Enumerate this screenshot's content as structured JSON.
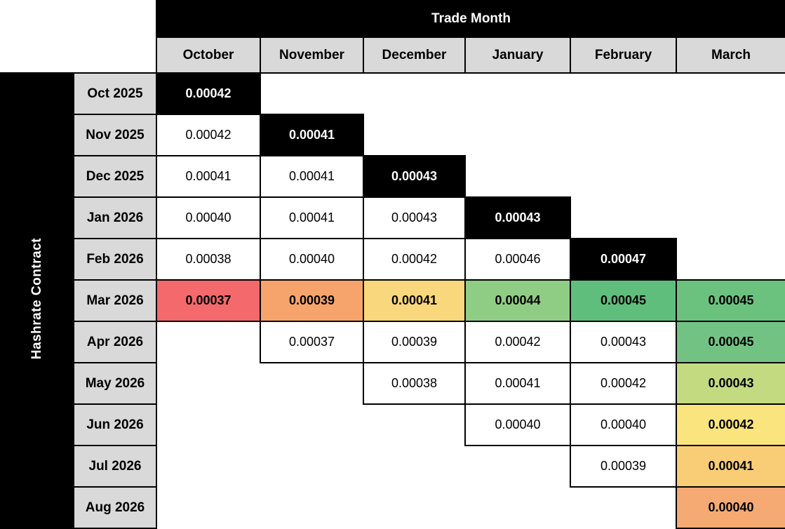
{
  "header": {
    "title": "Trade Month"
  },
  "left_axis": {
    "label": "Hashrate Contract"
  },
  "columns": [
    "October",
    "November",
    "December",
    "January",
    "February",
    "March"
  ],
  "colors": {
    "header_bg": "#000000",
    "header_text": "#ffffff",
    "column_header_bg": "#d9d9d9",
    "row_label_bg": "#d9d9d9",
    "diagonal_bg": "#000000",
    "diagonal_text": "#ffffff",
    "grid_line": "#000000",
    "scale_low": "#F4696B",
    "scale_mid": "#F9D77C",
    "scale_high": "#60BE7C"
  },
  "rows": [
    {
      "label": "Oct 2025",
      "cells": [
        {
          "value": "0.00042",
          "type": "diagonal"
        },
        null,
        null,
        null,
        null,
        null
      ]
    },
    {
      "label": "Nov 2025",
      "cells": [
        {
          "value": "0.00042"
        },
        {
          "value": "0.00041",
          "type": "diagonal"
        },
        null,
        null,
        null,
        null
      ]
    },
    {
      "label": "Dec 2025",
      "cells": [
        {
          "value": "0.00041"
        },
        {
          "value": "0.00041"
        },
        {
          "value": "0.00043",
          "type": "diagonal"
        },
        null,
        null,
        null
      ]
    },
    {
      "label": "Jan 2026",
      "cells": [
        {
          "value": "0.00040"
        },
        {
          "value": "0.00041"
        },
        {
          "value": "0.00043"
        },
        {
          "value": "0.00043",
          "type": "diagonal"
        },
        null,
        null
      ]
    },
    {
      "label": "Feb 2026",
      "cells": [
        {
          "value": "0.00038"
        },
        {
          "value": "0.00040"
        },
        {
          "value": "0.00042"
        },
        {
          "value": "0.00046"
        },
        {
          "value": "0.00047",
          "type": "diagonal"
        },
        null
      ]
    },
    {
      "label": "Mar 2026",
      "cells": [
        {
          "value": "0.00037",
          "bg": "#F4696B"
        },
        {
          "value": "0.00039",
          "bg": "#F7A46C"
        },
        {
          "value": "0.00041",
          "bg": "#F9D77C"
        },
        {
          "value": "0.00044",
          "bg": "#90CD84"
        },
        {
          "value": "0.00045",
          "bg": "#60BE7C"
        },
        {
          "value": "0.00045",
          "bg": "#6BC27F"
        }
      ]
    },
    {
      "label": "Apr 2026",
      "cells": [
        null,
        {
          "value": "0.00037"
        },
        {
          "value": "0.00039"
        },
        {
          "value": "0.00042"
        },
        {
          "value": "0.00043"
        },
        {
          "value": "0.00045",
          "bg": "#72C383"
        }
      ]
    },
    {
      "label": "May 2026",
      "cells": [
        null,
        null,
        {
          "value": "0.00038"
        },
        {
          "value": "0.00041"
        },
        {
          "value": "0.00042"
        },
        {
          "value": "0.00043",
          "bg": "#C3DA81"
        }
      ]
    },
    {
      "label": "Jun 2026",
      "cells": [
        null,
        null,
        null,
        {
          "value": "0.00040"
        },
        {
          "value": "0.00040"
        },
        {
          "value": "0.00042",
          "bg": "#FAE47E"
        }
      ]
    },
    {
      "label": "Jul 2026",
      "cells": [
        null,
        null,
        null,
        null,
        {
          "value": "0.00039"
        },
        {
          "value": "0.00041",
          "bg": "#F9CD76"
        }
      ]
    },
    {
      "label": "Aug 2026",
      "cells": [
        null,
        null,
        null,
        null,
        null,
        {
          "value": "0.00040",
          "bg": "#F5AA73"
        }
      ]
    }
  ],
  "chart_data": {
    "type": "heatmap",
    "title": "Trade Month",
    "xlabel": "Trade Month",
    "ylabel": "Hashrate Contract",
    "columns": [
      "October",
      "November",
      "December",
      "January",
      "February",
      "March"
    ],
    "rows": [
      "Oct 2025",
      "Nov 2025",
      "Dec 2025",
      "Jan 2026",
      "Feb 2026",
      "Mar 2026",
      "Apr 2026",
      "May 2026",
      "Jun 2026",
      "Jul 2026",
      "Aug 2026"
    ],
    "values": [
      [
        0.00042,
        null,
        null,
        null,
        null,
        null
      ],
      [
        0.00042,
        0.00041,
        null,
        null,
        null,
        null
      ],
      [
        0.00041,
        0.00041,
        0.00043,
        null,
        null,
        null
      ],
      [
        0.0004,
        0.00041,
        0.00043,
        0.00043,
        null,
        null
      ],
      [
        0.00038,
        0.0004,
        0.00042,
        0.00046,
        0.00047,
        null
      ],
      [
        0.00037,
        0.00039,
        0.00041,
        0.00044,
        0.00045,
        0.00045
      ],
      [
        null,
        0.00037,
        0.00039,
        0.00042,
        0.00043,
        0.00045
      ],
      [
        null,
        null,
        0.00038,
        0.00041,
        0.00042,
        0.00043
      ],
      [
        null,
        null,
        null,
        0.0004,
        0.0004,
        0.00042
      ],
      [
        null,
        null,
        null,
        null,
        0.00039,
        0.00041
      ],
      [
        null,
        null,
        null,
        null,
        null,
        0.0004
      ]
    ],
    "diagonal_black_cells": [
      [
        0,
        0
      ],
      [
        1,
        1
      ],
      [
        2,
        2
      ],
      [
        3,
        3
      ],
      [
        4,
        4
      ]
    ],
    "heat_colored_cells": "Mar 2026 row and March column use a red-yellow-green color scale",
    "legend_position": "none",
    "grid": true
  }
}
